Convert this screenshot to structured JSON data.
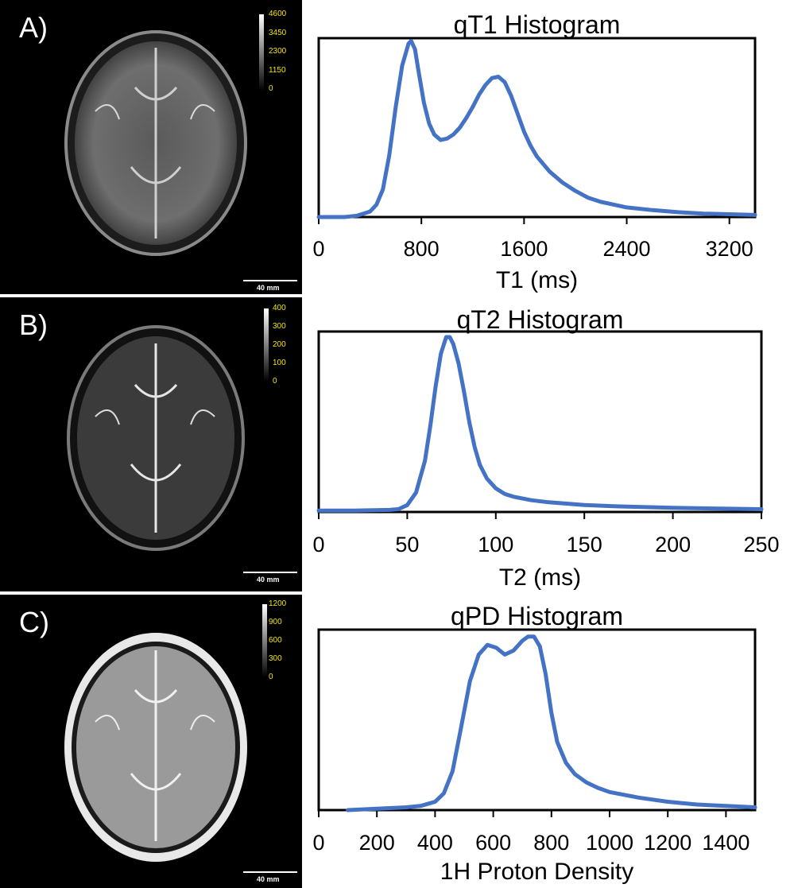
{
  "panels": [
    {
      "letter": "A)",
      "colorbar_ticks": [
        "4600",
        "3450",
        "2300",
        "1150",
        "0"
      ],
      "scale_label": "40 mm"
    },
    {
      "letter": "B)",
      "colorbar_ticks": [
        "400",
        "300",
        "200",
        "100",
        "0"
      ],
      "scale_label": "40 mm"
    },
    {
      "letter": "C)",
      "colorbar_ticks": [
        "1200",
        "900",
        "600",
        "300",
        "0"
      ],
      "scale_label": "40 mm"
    }
  ],
  "colors": {
    "line": "#4472c4",
    "colorbar_text": "#f2e600",
    "image_background": "#000000"
  },
  "chart_data": [
    {
      "type": "line",
      "title": "qT1 Histogram",
      "xlabel": "T1 (ms)",
      "ylabel": "",
      "xlim": [
        0,
        3400
      ],
      "ylim": [
        0,
        1.3
      ],
      "x_ticks": [
        0,
        800,
        1600,
        2400,
        3200
      ],
      "x_tick_labels": [
        "0",
        "800",
        "1600",
        "2400",
        "3200"
      ],
      "grid": false,
      "series": [
        {
          "x": [
            0,
            200,
            300,
            400,
            450,
            500,
            550,
            600,
            650,
            700,
            720,
            750,
            780,
            820,
            860,
            900,
            950,
            1000,
            1050,
            1100,
            1150,
            1200,
            1250,
            1300,
            1350,
            1400,
            1450,
            1500,
            1550,
            1600,
            1650,
            1700,
            1800,
            1900,
            2000,
            2100,
            2200,
            2400,
            2600,
            2800,
            3000,
            3200,
            3400
          ],
          "values": [
            0.0,
            0.0,
            0.01,
            0.04,
            0.09,
            0.2,
            0.45,
            0.8,
            1.1,
            1.26,
            1.28,
            1.22,
            1.05,
            0.83,
            0.68,
            0.6,
            0.56,
            0.57,
            0.6,
            0.65,
            0.72,
            0.8,
            0.89,
            0.96,
            1.01,
            1.02,
            0.98,
            0.88,
            0.75,
            0.62,
            0.52,
            0.44,
            0.33,
            0.25,
            0.19,
            0.14,
            0.11,
            0.07,
            0.05,
            0.035,
            0.025,
            0.02,
            0.015
          ]
        }
      ]
    },
    {
      "type": "line",
      "title": "qT2 Histogram",
      "xlabel": "T2 (ms)",
      "ylabel": "",
      "xlim": [
        0,
        250
      ],
      "ylim": [
        0,
        1.3
      ],
      "x_ticks": [
        0,
        50,
        100,
        150,
        200,
        250
      ],
      "x_tick_labels": [
        "0",
        "50",
        "100",
        "150",
        "200",
        "250"
      ],
      "grid": false,
      "series": [
        {
          "x": [
            0,
            20,
            40,
            45,
            50,
            55,
            60,
            63,
            66,
            69,
            72,
            74,
            76,
            79,
            82,
            85,
            88,
            91,
            95,
            100,
            105,
            110,
            120,
            130,
            140,
            150,
            170,
            200,
            250
          ],
          "values": [
            0.01,
            0.01,
            0.015,
            0.02,
            0.05,
            0.14,
            0.37,
            0.62,
            0.9,
            1.14,
            1.26,
            1.26,
            1.21,
            1.07,
            0.87,
            0.65,
            0.47,
            0.34,
            0.24,
            0.17,
            0.13,
            0.11,
            0.085,
            0.07,
            0.06,
            0.05,
            0.04,
            0.03,
            0.02
          ]
        }
      ]
    },
    {
      "type": "line",
      "title": "qPD Histogram",
      "xlabel": "1H Proton Density",
      "ylabel": "",
      "xlim": [
        0,
        1500
      ],
      "ylim": [
        0,
        1.3
      ],
      "x_ticks": [
        0,
        200,
        400,
        600,
        800,
        1000,
        1200,
        1400
      ],
      "x_tick_labels": [
        "0",
        "200",
        "400",
        "600",
        "800",
        "1000",
        "1200",
        "1400"
      ],
      "grid": false,
      "series": [
        {
          "x": [
            100,
            200,
            300,
            350,
            400,
            430,
            460,
            490,
            520,
            550,
            580,
            610,
            640,
            670,
            700,
            720,
            740,
            760,
            780,
            800,
            820,
            850,
            880,
            920,
            960,
            1000,
            1100,
            1200,
            1300,
            1400,
            1500
          ],
          "values": [
            0.0,
            0.01,
            0.02,
            0.03,
            0.06,
            0.12,
            0.28,
            0.6,
            0.93,
            1.12,
            1.19,
            1.17,
            1.12,
            1.15,
            1.22,
            1.25,
            1.25,
            1.18,
            0.98,
            0.7,
            0.49,
            0.34,
            0.26,
            0.2,
            0.16,
            0.13,
            0.09,
            0.06,
            0.04,
            0.03,
            0.02
          ]
        }
      ]
    }
  ]
}
